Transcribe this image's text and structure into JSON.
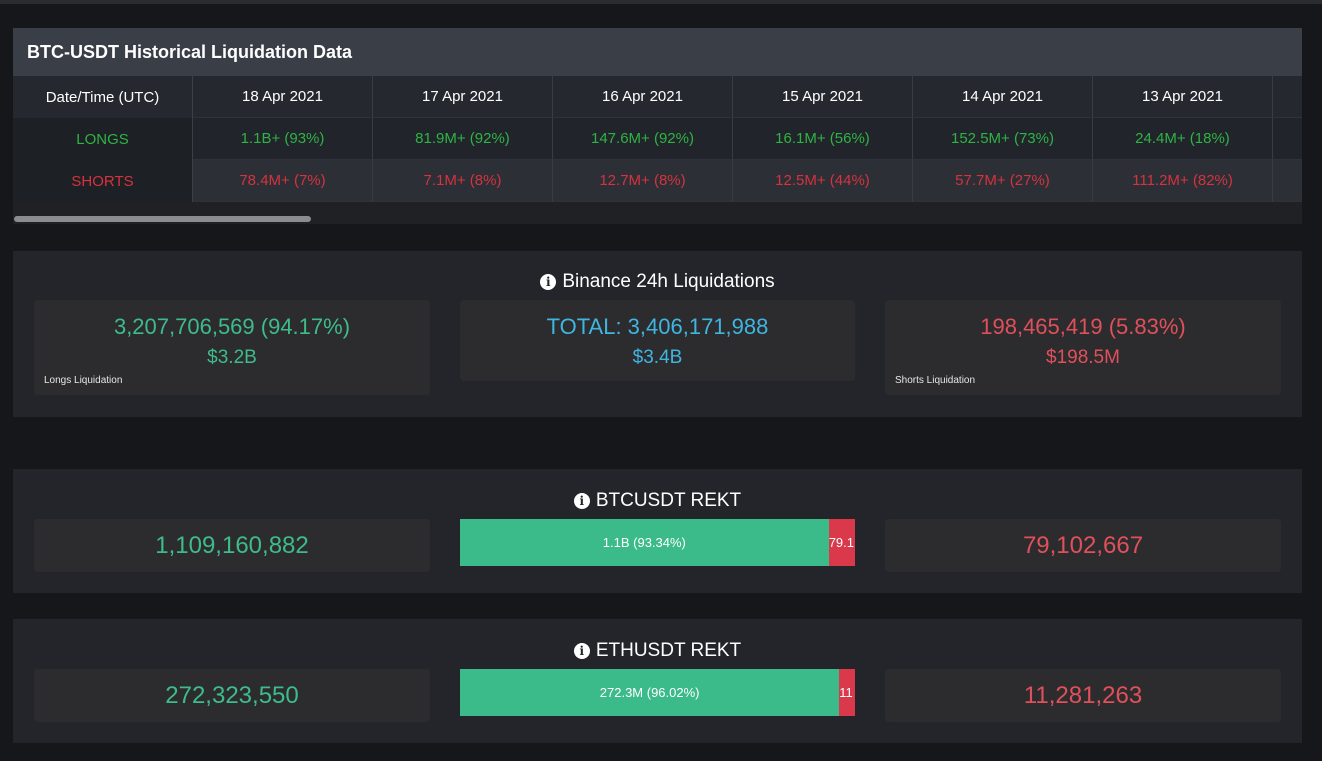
{
  "historical": {
    "title": "BTC-USDT Historical Liquidation Data",
    "header_label": "Date/Time (UTC)",
    "longs_label": "LONGS",
    "shorts_label": "SHORTS",
    "dates": [
      "18 Apr 2021",
      "17 Apr 2021",
      "16 Apr 2021",
      "15 Apr 2021",
      "14 Apr 2021",
      "13 Apr 2021"
    ],
    "longs": [
      "1.1B+ (93%)",
      "81.9M+ (92%)",
      "147.6M+ (92%)",
      "16.1M+ (56%)",
      "152.5M+ (73%)",
      "24.4M+ (18%)"
    ],
    "shorts": [
      "78.4M+ (7%)",
      "7.1M+ (8%)",
      "12.7M+ (8%)",
      "12.5M+ (44%)",
      "57.7M+ (27%)",
      "111.2M+ (82%)"
    ]
  },
  "binance": {
    "title": "Binance 24h Liquidations",
    "longs": {
      "value": "3,207,706,569 (94.17%)",
      "short": "$3.2B",
      "label": "Longs Liquidation"
    },
    "total": {
      "value": "TOTAL: 3,406,171,988",
      "short": "$3.4B"
    },
    "shorts": {
      "value": "198,465,419 (5.83%)",
      "short": "$198.5M",
      "label": "Shorts Liquidation"
    }
  },
  "btc_rekt": {
    "title": "BTCUSDT REKT",
    "longs": "1,109,160,882",
    "shorts": "79,102,667",
    "bar_long_label": "1.1B (93.34%)",
    "bar_short_label": "79.1",
    "long_fraction": 0.9334
  },
  "eth_rekt": {
    "title": "ETHUSDT REKT",
    "longs": "272,323,550",
    "shorts": "11,281,263",
    "bar_long_label": "272.3M (96.02%)",
    "bar_short_label": "11",
    "long_fraction": 0.9602
  },
  "colors": {
    "long": "#3dbc8a",
    "short": "#e0505a",
    "total": "#3fb6e0",
    "table_long": "#2fb344",
    "table_short": "#d5333f"
  },
  "icons": {
    "info": "info-circle-icon"
  }
}
